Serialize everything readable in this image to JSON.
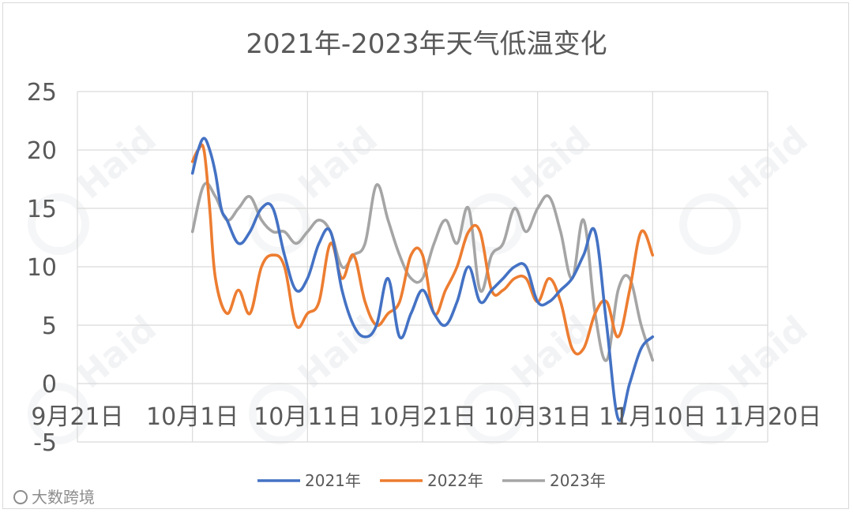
{
  "chart_data": {
    "type": "line",
    "title": "2021年-2023年天气低温变化",
    "xlabel": "",
    "ylabel": "",
    "ylim": [
      -5,
      25
    ],
    "yticks": [
      25,
      20,
      15,
      10,
      5,
      0,
      -5
    ],
    "xlim_days": [
      0,
      60
    ],
    "xtick_labels": [
      "9月21日",
      "10月1日",
      "10月11日",
      "10月21日",
      "10月31日",
      "11月10日",
      "11月20日"
    ],
    "grid": true,
    "legend_position": "bottom",
    "series": [
      {
        "name": "2021年",
        "color": "#4472c4",
        "x": [
          10,
          10.5,
          11,
          11.5,
          12,
          12.5,
          13,
          14,
          15,
          16,
          17,
          18,
          19,
          20,
          21,
          22,
          23,
          24,
          25,
          26,
          27,
          28,
          29,
          30,
          31,
          32,
          33,
          34,
          35,
          36,
          37,
          38,
          39,
          40,
          41,
          42,
          43,
          44,
          45,
          46,
          47,
          48,
          49,
          50
        ],
        "values": [
          18,
          20,
          21,
          20,
          18,
          15,
          14,
          12,
          13,
          15,
          15,
          11,
          8,
          9,
          12,
          13,
          8,
          5,
          4,
          5,
          9,
          4,
          6,
          8,
          6,
          5,
          7,
          10,
          7,
          8,
          9,
          10,
          10,
          7,
          7,
          8,
          9,
          11,
          13,
          5,
          -3,
          0,
          3,
          4
        ]
      },
      {
        "name": "2022年",
        "color": "#ed7d31",
        "x": [
          10,
          10.5,
          11,
          11.5,
          12,
          13,
          14,
          15,
          16,
          17,
          18,
          19,
          20,
          21,
          22,
          23,
          24,
          25,
          26,
          27,
          28,
          29,
          30,
          31,
          32,
          33,
          34,
          35,
          36,
          37,
          38,
          39,
          40,
          41,
          42,
          43,
          44,
          45,
          46,
          47,
          48,
          49,
          50
        ],
        "values": [
          19,
          20,
          20,
          15,
          9,
          6,
          8,
          6,
          10,
          11,
          10,
          5,
          6,
          7,
          12,
          9,
          11,
          7,
          5,
          6,
          7,
          11,
          11,
          6,
          8,
          10,
          13,
          13,
          8,
          8,
          9,
          9,
          7,
          9,
          7,
          3,
          3,
          6,
          7,
          4,
          8,
          13,
          11
        ]
      },
      {
        "name": "2023年",
        "color": "#a5a5a5",
        "x": [
          10,
          11,
          12,
          13,
          14,
          15,
          16,
          17,
          18,
          19,
          20,
          21,
          22,
          23,
          24,
          25,
          26,
          27,
          28,
          29,
          30,
          31,
          32,
          33,
          34,
          35,
          36,
          37,
          38,
          39,
          40,
          41,
          42,
          43,
          44,
          45,
          46,
          47,
          48,
          49,
          50
        ],
        "values": [
          13,
          17,
          16,
          14,
          15,
          16,
          14,
          13,
          13,
          12,
          13,
          14,
          13,
          10,
          11,
          12,
          17,
          14,
          11,
          9,
          9,
          12,
          14,
          12,
          15,
          8,
          11,
          12,
          15,
          13,
          15,
          16,
          13,
          9,
          14,
          6,
          2,
          8,
          9,
          5,
          2
        ]
      }
    ]
  },
  "watermark": "Haid",
  "source_label": "大数跨境",
  "colors": {
    "series_2021": "#4472c4",
    "series_2022": "#ed7d31",
    "series_2023": "#a5a5a5",
    "grid": "#d9d9d9",
    "text": "#595959"
  }
}
